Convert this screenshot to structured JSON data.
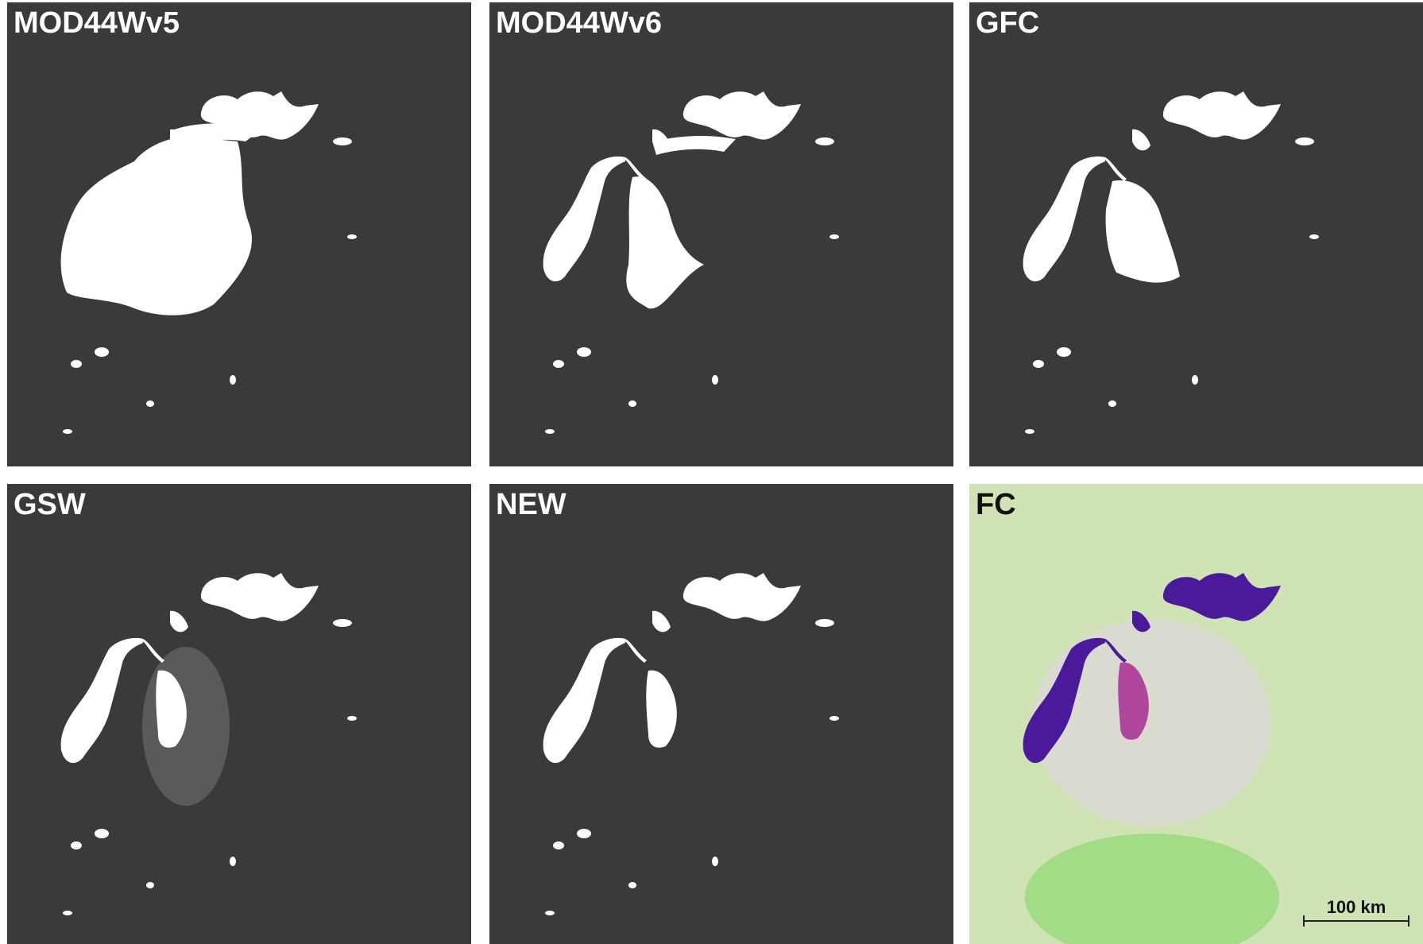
{
  "panels": [
    {
      "label": "MOD44Wv5"
    },
    {
      "label": "MOD44Wv6"
    },
    {
      "label": "GFC"
    },
    {
      "label": "GSW"
    },
    {
      "label": "NEW"
    },
    {
      "label": "FC"
    }
  ],
  "scale_bar": "100 km"
}
